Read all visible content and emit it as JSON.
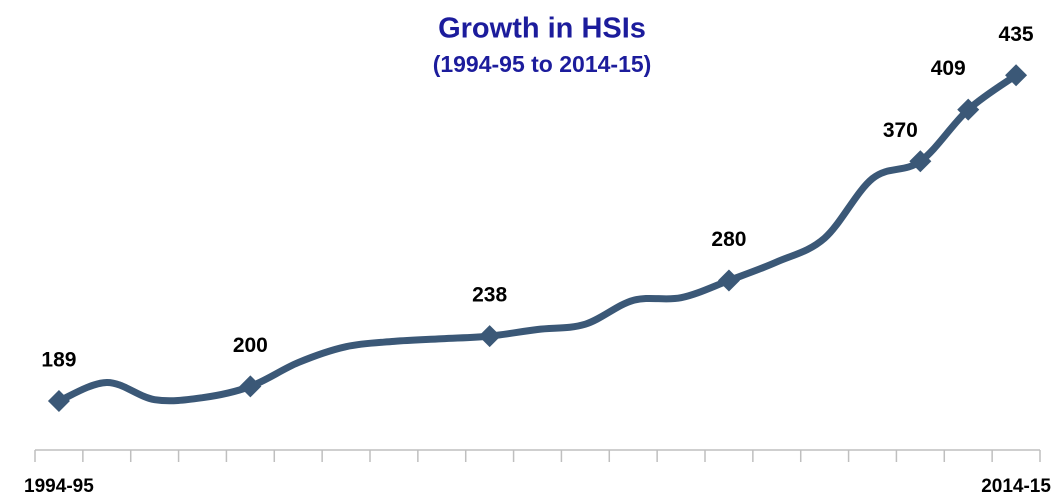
{
  "chart_data": {
    "type": "line",
    "title": "Growth in HSIs",
    "subtitle": "(1994-95 to 2014-15)",
    "categories": [
      "1994-95",
      null,
      null,
      null,
      null,
      null,
      null,
      null,
      null,
      null,
      null,
      null,
      null,
      null,
      null,
      null,
      null,
      null,
      null,
      null,
      "2014-15"
    ],
    "series": [
      {
        "color": "#3b5877",
        "values": [
          189,
          203,
          190,
          191.5,
          200,
          218,
          230,
          234,
          236,
          238,
          243,
          247,
          265,
          267,
          280,
          294,
          312,
          357,
          370,
          409,
          435
        ],
        "value_labels": [
          "189",
          null,
          null,
          null,
          "200",
          null,
          null,
          null,
          null,
          "238",
          null,
          null,
          null,
          null,
          "280",
          null,
          null,
          null,
          "370",
          "409",
          "435"
        ]
      }
    ],
    "ylim": [
      155,
      445
    ],
    "smooth": true
  }
}
